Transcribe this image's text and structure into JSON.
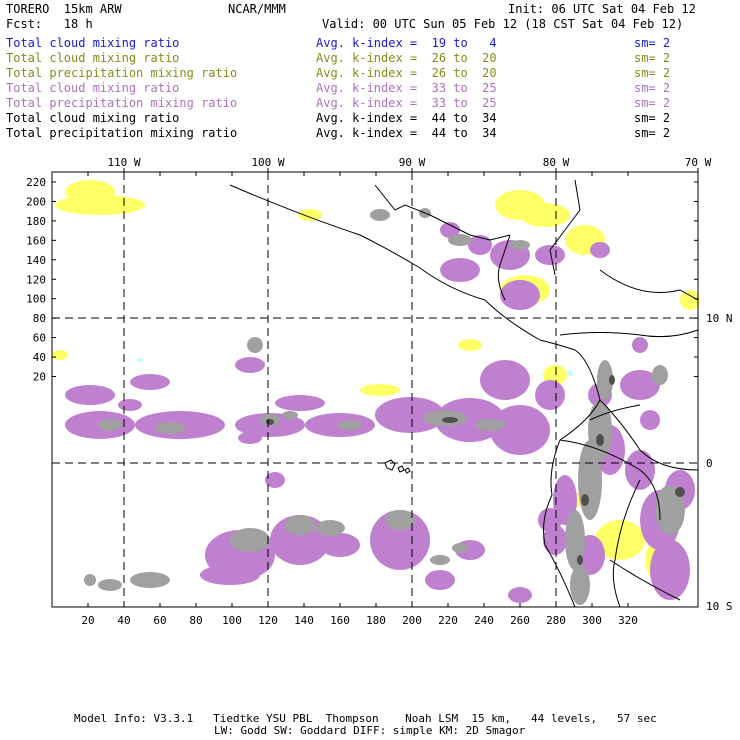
{
  "header": {
    "model": "TORERO  15km ARW",
    "center": "NCAR/MMM",
    "init": "Init: 06 UTC Sat 04 Feb 12",
    "fcst": "Fcst:   18 h",
    "valid": "Valid: 00 UTC Sun 05 Feb 12 (18 CST Sat 04 Feb 12)"
  },
  "legend": [
    {
      "field": "Total cloud mixing ratio",
      "kindex": "Avg. k-index =  19 to   4",
      "sm": "sm= 2",
      "color": "#1a1acc"
    },
    {
      "field": "Total cloud mixing ratio",
      "kindex": "Avg. k-index =  26 to  20",
      "sm": "sm= 2",
      "color": "#8a8a1a"
    },
    {
      "field": "Total precipitation mixing ratio",
      "kindex": "Avg. k-index =  26 to  20",
      "sm": "sm= 2",
      "color": "#8a8a1a"
    },
    {
      "field": "Total cloud mixing ratio",
      "kindex": "Avg. k-index =  33 to  25",
      "sm": "sm= 2",
      "color": "#b070c0"
    },
    {
      "field": "Total precipitation mixing ratio",
      "kindex": "Avg. k-index =  33 to  25",
      "sm": "sm= 2",
      "color": "#b070c0"
    },
    {
      "field": "Total cloud mixing ratio",
      "kindex": "Avg. k-index =  44 to  34",
      "sm": "sm= 2",
      "color": "#000000"
    },
    {
      "field": "Total precipitation mixing ratio",
      "kindex": "Avg. k-index =  44 to  34",
      "sm": "sm= 2",
      "color": "#000000"
    }
  ],
  "map": {
    "lon_labels": [
      "110 W",
      "100 W",
      "90 W",
      "80 W",
      "70 W"
    ],
    "lat_labels": [
      "10 N",
      "0",
      "10 S"
    ],
    "y_ticks": [
      "220",
      "200",
      "180",
      "160",
      "140",
      "120",
      "100",
      "80",
      "60",
      "40",
      "20"
    ],
    "x_ticks": [
      "20",
      "40",
      "60",
      "80",
      "100",
      "120",
      "140",
      "160",
      "180",
      "200",
      "220",
      "240",
      "260",
      "280",
      "300",
      "320"
    ],
    "colors": {
      "yellow": "#ffff66",
      "purple": "#c080d0",
      "gray": "#a0a0a0",
      "darkgray": "#505050",
      "cyan": "#c0ffff"
    }
  },
  "footer": {
    "line1": "Model Info: V3.3.1   Tiedtke YSU PBL  Thompson    Noah LSM  15 km,   44 levels,   57 sec",
    "line2": "LW: Godd SW: Goddard DIFF: simple KM: 2D Smagor"
  }
}
